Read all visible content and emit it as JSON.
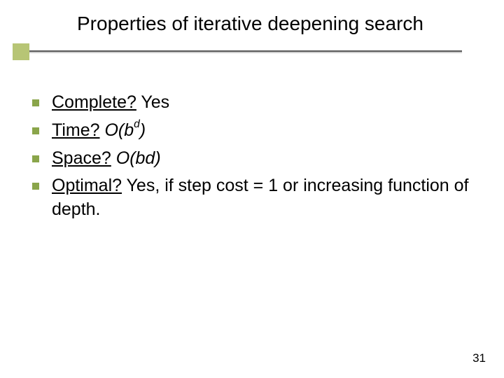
{
  "slide": {
    "title": "Properties of iterative deepening search",
    "page_number": "31",
    "background_color": "#ffffff",
    "accent_square_color": "#b7c575",
    "bullet_color": "#8aa54a",
    "line_dark": "#595959",
    "line_light": "#cfcfcf",
    "title_fontsize": 28,
    "body_fontsize": 25
  },
  "bullets": [
    {
      "label": "Complete?",
      "rest": " Yes"
    },
    {
      "label": "Time?",
      "math_prefix": " O(b",
      "exp": "d",
      "math_suffix": ")"
    },
    {
      "label": "Space?",
      "math": " O(bd)"
    },
    {
      "label": "Optimal?",
      "rest": " Yes, if step cost = 1 or increasing function of depth."
    }
  ]
}
